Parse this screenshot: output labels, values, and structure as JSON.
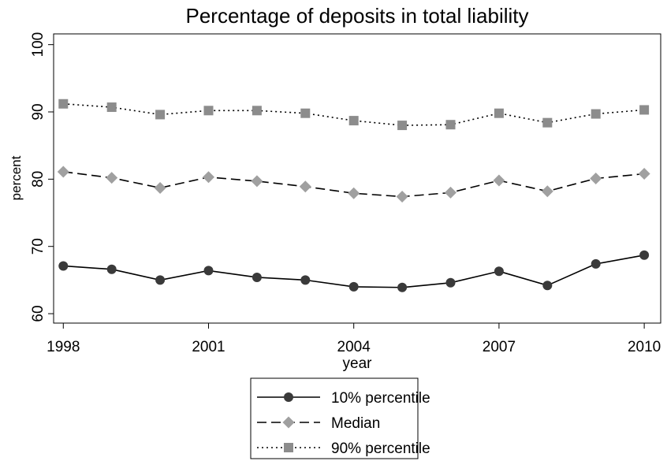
{
  "chart_data": {
    "type": "line",
    "title": "Percentage of deposits in total liability",
    "x_label": "year",
    "y_label": "percent",
    "x": [
      1998,
      1999,
      2000,
      2001,
      2002,
      2003,
      2004,
      2005,
      2006,
      2007,
      2008,
      2009,
      2010
    ],
    "series": [
      {
        "name": "10% percentile",
        "color": "#3a3a3a",
        "marker": "circle",
        "line_style": "solid",
        "values": [
          67.1,
          66.6,
          65.0,
          66.4,
          65.4,
          65.0,
          64.0,
          63.9,
          64.6,
          66.3,
          64.2,
          67.4,
          68.7
        ]
      },
      {
        "name": "Median",
        "color": "#a0a0a0",
        "marker": "diamond",
        "line_style": "dashed",
        "values": [
          81.1,
          80.2,
          78.7,
          80.3,
          79.7,
          78.9,
          77.9,
          77.4,
          78.0,
          79.8,
          78.2,
          80.1,
          80.8
        ]
      },
      {
        "name": "90% percentile",
        "color": "#8c8c8c",
        "marker": "square",
        "line_style": "dotted",
        "values": [
          91.2,
          90.7,
          89.6,
          90.2,
          90.2,
          89.8,
          88.7,
          88.0,
          88.1,
          89.8,
          88.4,
          89.7,
          90.3
        ]
      }
    ],
    "xlim": [
      1997.8,
      2010.34
    ],
    "xticks": [
      1998,
      2001,
      2004,
      2007,
      2010
    ],
    "ylim": [
      58.6,
      101.6
    ],
    "yticks": [
      60,
      70,
      80,
      90,
      100
    ],
    "grid": false
  }
}
